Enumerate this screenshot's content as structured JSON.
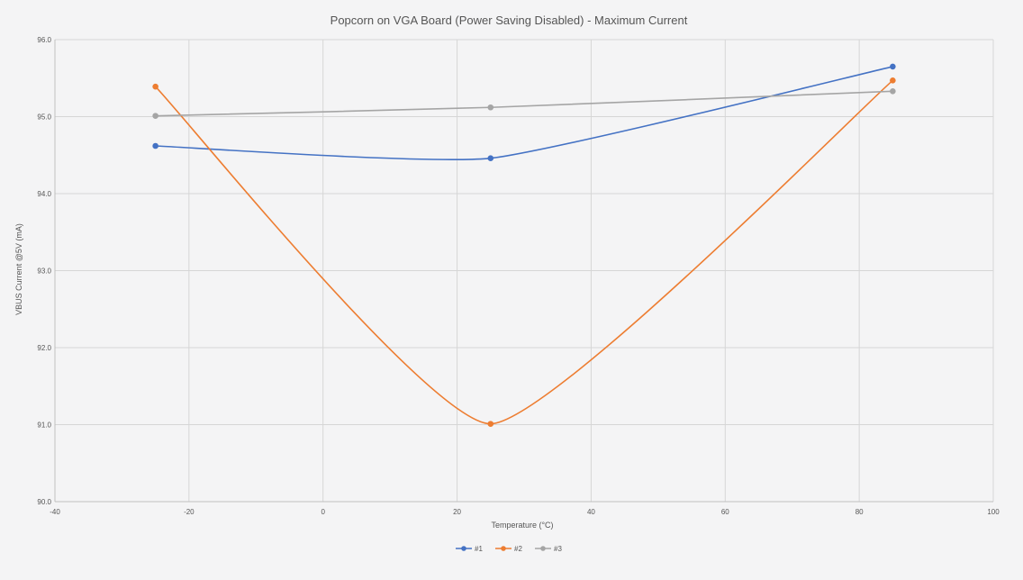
{
  "chart_data": {
    "type": "line",
    "title": "Popcorn on VGA Board (Power Saving Disabled) - Maximum Current",
    "xlabel": "Temperature (°C)",
    "ylabel": "VBUS Current @5V (mA)",
    "xlim": [
      -40,
      100
    ],
    "ylim": [
      90.0,
      96.0
    ],
    "xticks": [
      -40,
      -20,
      0,
      20,
      40,
      60,
      80,
      100
    ],
    "yticks": [
      90.0,
      91.0,
      92.0,
      93.0,
      94.0,
      95.0,
      96.0
    ],
    "xtick_labels": [
      "-40",
      "-20",
      "0",
      "20",
      "40",
      "60",
      "80",
      "100"
    ],
    "ytick_labels": [
      "90.0",
      "91.0",
      "92.0",
      "93.0",
      "94.0",
      "95.0",
      "96.0"
    ],
    "grid": true,
    "legend_position": "bottom",
    "series": [
      {
        "name": "#1",
        "color": "#4472c4",
        "x": [
          -25,
          25,
          85
        ],
        "y": [
          94.62,
          94.46,
          95.65
        ]
      },
      {
        "name": "#2",
        "color": "#ed7d31",
        "x": [
          -25,
          25,
          85
        ],
        "y": [
          95.39,
          91.01,
          95.47
        ]
      },
      {
        "name": "#3",
        "color": "#a5a5a5",
        "x": [
          -25,
          25,
          85
        ],
        "y": [
          95.01,
          95.12,
          95.33
        ]
      }
    ]
  }
}
